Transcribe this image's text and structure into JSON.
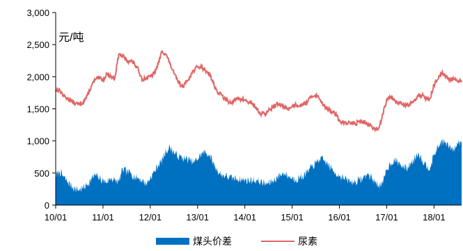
{
  "chart_data": {
    "type": "area",
    "unit_label": "元/吨",
    "ylim": [
      0,
      3000
    ],
    "yticks": [
      0,
      500,
      1000,
      1500,
      2000,
      2500,
      3000
    ],
    "ytick_labels": [
      "0",
      "500",
      "1,000",
      "1,500",
      "2,000",
      "2,500",
      "3,000"
    ],
    "xlim": [
      "2010-01",
      "2018-08"
    ],
    "xticks": [
      "2010-01",
      "2011-01",
      "2012-01",
      "2013-01",
      "2014-01",
      "2015-01",
      "2016-01",
      "2017-01",
      "2018-01"
    ],
    "xtick_labels": [
      "10/01",
      "11/01",
      "12/01",
      "13/01",
      "14/01",
      "15/01",
      "16/01",
      "17/01",
      "18/01"
    ],
    "grid": false,
    "legend_position": "bottom",
    "series": [
      {
        "name": "煤头价差",
        "type": "area",
        "color": "#0070C0",
        "x": [
          "2010-01",
          "2010-02",
          "2010-03",
          "2010-04",
          "2010-05",
          "2010-06",
          "2010-07",
          "2010-08",
          "2010-09",
          "2010-10",
          "2010-11",
          "2010-12",
          "2011-01",
          "2011-02",
          "2011-03",
          "2011-04",
          "2011-05",
          "2011-06",
          "2011-07",
          "2011-08",
          "2011-09",
          "2011-10",
          "2011-11",
          "2011-12",
          "2012-01",
          "2012-02",
          "2012-03",
          "2012-04",
          "2012-05",
          "2012-06",
          "2012-07",
          "2012-08",
          "2012-09",
          "2012-10",
          "2012-11",
          "2012-12",
          "2013-01",
          "2013-02",
          "2013-03",
          "2013-04",
          "2013-05",
          "2013-06",
          "2013-07",
          "2013-08",
          "2013-09",
          "2013-10",
          "2013-11",
          "2013-12",
          "2014-01",
          "2014-02",
          "2014-03",
          "2014-04",
          "2014-05",
          "2014-06",
          "2014-07",
          "2014-08",
          "2014-09",
          "2014-10",
          "2014-11",
          "2014-12",
          "2015-01",
          "2015-02",
          "2015-03",
          "2015-04",
          "2015-05",
          "2015-06",
          "2015-07",
          "2015-08",
          "2015-09",
          "2015-10",
          "2015-11",
          "2015-12",
          "2016-01",
          "2016-02",
          "2016-03",
          "2016-04",
          "2016-05",
          "2016-06",
          "2016-07",
          "2016-08",
          "2016-09",
          "2016-10",
          "2016-11",
          "2016-12",
          "2017-01",
          "2017-02",
          "2017-03",
          "2017-04",
          "2017-05",
          "2017-06",
          "2017-07",
          "2017-08",
          "2017-09",
          "2017-10",
          "2017-11",
          "2017-12",
          "2018-01",
          "2018-02",
          "2018-03",
          "2018-04",
          "2018-05",
          "2018-06",
          "2018-07",
          "2018-08"
        ],
        "values": [
          460,
          520,
          440,
          360,
          300,
          250,
          240,
          270,
          320,
          400,
          470,
          420,
          380,
          360,
          420,
          380,
          360,
          560,
          520,
          500,
          440,
          420,
          380,
          330,
          420,
          520,
          620,
          700,
          840,
          900,
          820,
          760,
          740,
          720,
          700,
          660,
          720,
          800,
          820,
          780,
          650,
          540,
          470,
          460,
          430,
          420,
          410,
          400,
          390,
          380,
          390,
          380,
          360,
          330,
          340,
          370,
          420,
          470,
          500,
          450,
          420,
          400,
          430,
          460,
          520,
          600,
          650,
          720,
          700,
          640,
          560,
          500,
          460,
          420,
          390,
          360,
          360,
          390,
          420,
          480,
          440,
          360,
          310,
          330,
          560,
          650,
          700,
          660,
          600,
          570,
          640,
          720,
          820,
          700,
          620,
          580,
          780,
          900,
          1000,
          960,
          900,
          860,
          960,
          1000
        ]
      },
      {
        "name": "尿素",
        "type": "line",
        "color": "#E06666",
        "x": [
          "2010-01",
          "2010-02",
          "2010-03",
          "2010-04",
          "2010-05",
          "2010-06",
          "2010-07",
          "2010-08",
          "2010-09",
          "2010-10",
          "2010-11",
          "2010-12",
          "2011-01",
          "2011-02",
          "2011-03",
          "2011-04",
          "2011-05",
          "2011-06",
          "2011-07",
          "2011-08",
          "2011-09",
          "2011-10",
          "2011-11",
          "2011-12",
          "2012-01",
          "2012-02",
          "2012-03",
          "2012-04",
          "2012-05",
          "2012-06",
          "2012-07",
          "2012-08",
          "2012-09",
          "2012-10",
          "2012-11",
          "2012-12",
          "2013-01",
          "2013-02",
          "2013-03",
          "2013-04",
          "2013-05",
          "2013-06",
          "2013-07",
          "2013-08",
          "2013-09",
          "2013-10",
          "2013-11",
          "2013-12",
          "2014-01",
          "2014-02",
          "2014-03",
          "2014-04",
          "2014-05",
          "2014-06",
          "2014-07",
          "2014-08",
          "2014-09",
          "2014-10",
          "2014-11",
          "2014-12",
          "2015-01",
          "2015-02",
          "2015-03",
          "2015-04",
          "2015-05",
          "2015-06",
          "2015-07",
          "2015-08",
          "2015-09",
          "2015-10",
          "2015-11",
          "2015-12",
          "2016-01",
          "2016-02",
          "2016-03",
          "2016-04",
          "2016-05",
          "2016-06",
          "2016-07",
          "2016-08",
          "2016-09",
          "2016-10",
          "2016-11",
          "2016-12",
          "2017-01",
          "2017-02",
          "2017-03",
          "2017-04",
          "2017-05",
          "2017-06",
          "2017-07",
          "2017-08",
          "2017-09",
          "2017-10",
          "2017-11",
          "2017-12",
          "2018-01",
          "2018-02",
          "2018-03",
          "2018-04",
          "2018-05",
          "2018-06",
          "2018-07",
          "2018-08"
        ],
        "values": [
          1800,
          1790,
          1700,
          1660,
          1620,
          1580,
          1570,
          1610,
          1700,
          1850,
          1950,
          1980,
          1950,
          2050,
          2000,
          1980,
          2350,
          2320,
          2250,
          2250,
          2200,
          2100,
          1960,
          1980,
          2000,
          2050,
          2200,
          2400,
          2350,
          2200,
          2050,
          1930,
          1850,
          1900,
          2000,
          2100,
          2150,
          2150,
          2100,
          2050,
          1900,
          1760,
          1720,
          1650,
          1600,
          1620,
          1650,
          1650,
          1640,
          1600,
          1580,
          1500,
          1420,
          1420,
          1470,
          1520,
          1570,
          1560,
          1530,
          1500,
          1540,
          1560,
          1560,
          1580,
          1620,
          1700,
          1720,
          1650,
          1560,
          1500,
          1450,
          1430,
          1300,
          1290,
          1270,
          1280,
          1270,
          1300,
          1300,
          1260,
          1240,
          1170,
          1200,
          1420,
          1650,
          1690,
          1640,
          1600,
          1560,
          1550,
          1570,
          1630,
          1720,
          1710,
          1650,
          1660,
          1880,
          1960,
          2050,
          2000,
          1950,
          1960,
          1920,
          1940
        ]
      }
    ],
    "legend": [
      "煤头价差",
      "尿素"
    ]
  }
}
